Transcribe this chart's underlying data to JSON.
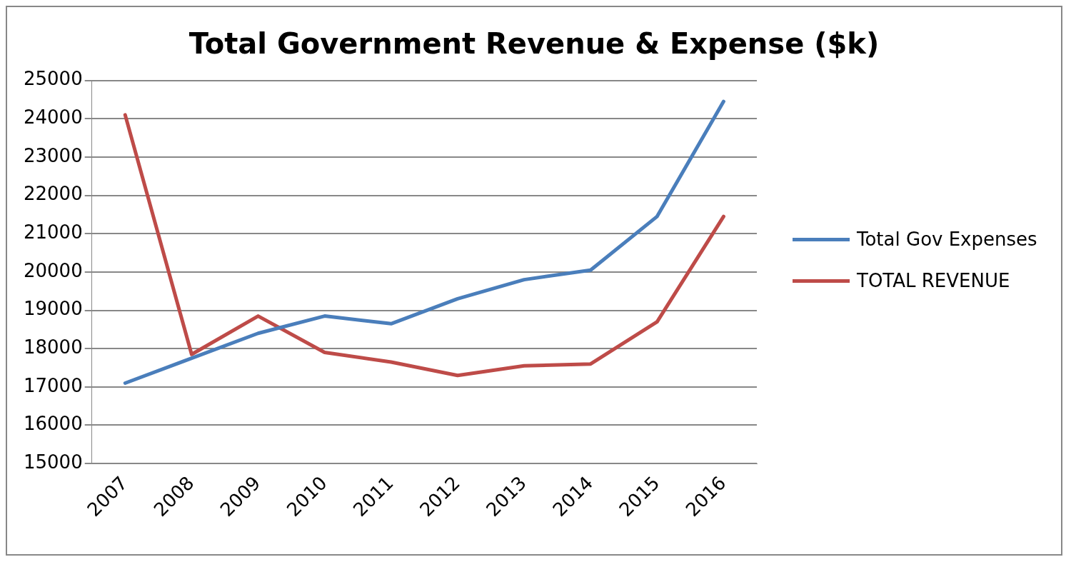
{
  "chart_data": {
    "type": "line",
    "title": "Total Government Revenue & Expense ($k)",
    "categories": [
      "2007",
      "2008",
      "2009",
      "2010",
      "2011",
      "2012",
      "2013",
      "2014",
      "2015",
      "2016"
    ],
    "series": [
      {
        "name": "Total Gov Expenses",
        "color": "#4a7ebb",
        "values": [
          17100,
          17750,
          18400,
          18850,
          18650,
          19300,
          19800,
          20050,
          21450,
          24450
        ]
      },
      {
        "name": "TOTAL REVENUE",
        "color": "#be4b48",
        "values": [
          24100,
          17850,
          18850,
          17900,
          17650,
          17300,
          17550,
          17600,
          18700,
          21450
        ]
      }
    ],
    "ylim": [
      15000,
      25000
    ],
    "yticks": [
      15000,
      16000,
      17000,
      18000,
      19000,
      20000,
      21000,
      22000,
      23000,
      24000,
      25000
    ],
    "grid": "y",
    "legend": "right",
    "marker": "none",
    "line_style": "solid"
  }
}
